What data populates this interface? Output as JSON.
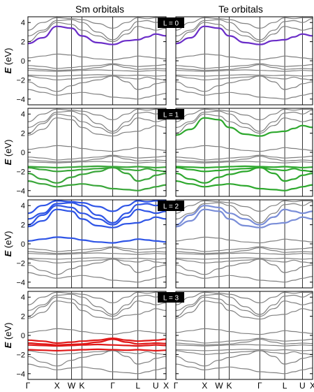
{
  "chart_data": {
    "type": "line",
    "column_titles": [
      "Sm orbitals",
      "Te orbitals"
    ],
    "ylabel_symbol": "E",
    "ylabel_unit": "(eV)",
    "ylim": [
      -4.6,
      4.6
    ],
    "yticks": [
      -4,
      -2,
      0,
      2,
      4
    ],
    "kpath": [
      {
        "label": "Γ",
        "k": 0.0
      },
      {
        "label": "X",
        "k": 1.0
      },
      {
        "label": "W",
        "k": 1.5
      },
      {
        "label": "K",
        "k": 1.854
      },
      {
        "label": "Γ",
        "k": 2.914
      },
      {
        "label": "L",
        "k": 3.78
      },
      {
        "label": "U",
        "k": 4.393
      },
      {
        "label": "X",
        "k": 4.747
      }
    ],
    "grid": "vertical lines at high-symmetry k-points",
    "bands": [
      {
        "k": [
          0,
          0.5,
          1.0,
          1.5,
          1.854,
          2.4,
          2.914,
          3.4,
          3.78,
          4.1,
          4.393,
          4.747
        ],
        "E": [
          -3.0,
          -3.3,
          -3.6,
          -3.4,
          -3.3,
          -3.5,
          -3.8,
          -3.9,
          -4.0,
          -3.8,
          -3.6,
          -3.4
        ]
      },
      {
        "k": [
          0,
          0.5,
          1.0,
          1.5,
          1.854,
          2.4,
          2.914,
          3.4,
          3.78,
          4.1,
          4.393,
          4.747
        ],
        "E": [
          -2.2,
          -2.8,
          -3.2,
          -2.6,
          -2.3,
          -2.0,
          -1.6,
          -2.2,
          -3.0,
          -2.8,
          -2.4,
          -2.2
        ]
      },
      {
        "k": [
          0,
          0.5,
          1.0,
          1.5,
          1.854,
          2.4,
          2.914,
          3.4,
          3.78,
          4.1,
          4.393,
          4.747
        ],
        "E": [
          -1.6,
          -1.8,
          -2.0,
          -1.9,
          -1.8,
          -1.7,
          -1.6,
          -1.8,
          -1.9,
          -1.7,
          -1.9,
          -2.0
        ]
      },
      {
        "k": [
          0,
          0.5,
          1.0,
          1.5,
          1.854,
          2.4,
          2.914,
          3.4,
          3.78,
          4.1,
          4.393,
          4.747
        ],
        "E": [
          -1.5,
          -1.55,
          -1.6,
          -1.55,
          -1.5,
          -1.45,
          -1.5,
          -1.55,
          -1.5,
          -1.55,
          -1.6,
          -1.55
        ]
      },
      {
        "k": [
          0,
          0.5,
          1.0,
          1.5,
          1.854,
          2.4,
          2.914,
          3.4,
          3.78,
          4.1,
          4.393,
          4.747
        ],
        "E": [
          -1.0,
          -1.05,
          -1.1,
          -1.05,
          -1.0,
          -0.95,
          -1.0,
          -1.05,
          -1.1,
          -1.05,
          -1.0,
          -1.05
        ]
      },
      {
        "k": [
          0,
          0.5,
          1.0,
          1.5,
          1.854,
          2.4,
          2.914,
          3.4,
          3.78,
          4.1,
          4.393,
          4.747
        ],
        "E": [
          -0.8,
          -0.9,
          -1.0,
          -0.95,
          -0.9,
          -0.7,
          -0.4,
          -0.7,
          -0.9,
          -0.85,
          -0.8,
          -0.85
        ]
      },
      {
        "k": [
          0,
          0.5,
          1.0,
          1.5,
          1.854,
          2.4,
          2.914,
          3.4,
          3.78,
          4.1,
          4.393,
          4.747
        ],
        "E": [
          -0.5,
          -0.6,
          -0.8,
          -0.7,
          -0.6,
          -0.5,
          -0.3,
          -0.5,
          -0.6,
          -0.55,
          -0.5,
          -0.4
        ]
      },
      {
        "k": [
          0,
          0.5,
          1.0,
          1.5,
          1.854,
          2.4,
          2.914,
          3.4,
          3.78,
          4.1,
          4.393,
          4.747
        ],
        "E": [
          0.3,
          0.5,
          0.7,
          0.6,
          0.4,
          0.2,
          0.1,
          0.3,
          0.5,
          0.4,
          0.3,
          0.2
        ]
      },
      {
        "k": [
          0,
          0.5,
          1.0,
          1.5,
          1.854,
          2.4,
          2.914,
          3.4,
          3.78,
          4.1,
          4.393,
          4.747
        ],
        "E": [
          1.8,
          2.4,
          3.6,
          3.4,
          2.6,
          1.9,
          1.7,
          2.1,
          2.2,
          2.5,
          2.8,
          2.6
        ]
      },
      {
        "k": [
          0,
          0.5,
          1.0,
          1.5,
          1.854,
          2.4,
          2.914,
          3.4,
          3.78,
          4.1,
          4.393,
          4.747
        ],
        "E": [
          2.0,
          3.0,
          4.0,
          3.8,
          3.2,
          2.6,
          2.0,
          2.8,
          3.6,
          3.4,
          3.2,
          3.4
        ]
      },
      {
        "k": [
          0,
          0.5,
          1.0,
          1.5,
          1.854,
          2.4,
          2.914,
          3.4,
          3.78,
          4.1,
          4.393,
          4.747
        ],
        "E": [
          2.6,
          3.2,
          4.2,
          4.3,
          4.0,
          3.0,
          2.2,
          3.2,
          4.1,
          4.2,
          4.0,
          4.4
        ]
      },
      {
        "k": [
          0,
          0.5,
          1.0,
          1.5,
          1.854,
          2.4,
          2.914,
          3.4,
          3.78,
          4.1,
          4.393,
          4.747
        ],
        "E": [
          3.2,
          4.0,
          4.5,
          4.4,
          4.3,
          3.9,
          3.4,
          4.0,
          4.5,
          4.4,
          4.5,
          4.5
        ]
      }
    ],
    "panels": [
      {
        "label": "L = 0",
        "sm_color": "#6a2dc8",
        "te_color": "#6a2dc8",
        "sm_highlight": [
          8
        ],
        "te_highlight": [
          8
        ]
      },
      {
        "label": "L = 1",
        "sm_color": "#3aa63a",
        "te_color": "#2ea82e",
        "sm_highlight": [
          0,
          1,
          2,
          3
        ],
        "te_highlight": [
          0,
          1,
          2,
          3,
          8
        ]
      },
      {
        "label": "L = 2",
        "sm_color": "#2f55e6",
        "te_color": "#7a8ed8",
        "sm_highlight": [
          7,
          8,
          9,
          10,
          11
        ],
        "te_highlight": [
          8,
          9
        ]
      },
      {
        "label": "L = 3",
        "sm_color": "#e01818",
        "te_color": "#808080",
        "sm_highlight": [
          3,
          4,
          5,
          6
        ],
        "te_highlight": []
      }
    ],
    "base_band_color": "#808080"
  }
}
